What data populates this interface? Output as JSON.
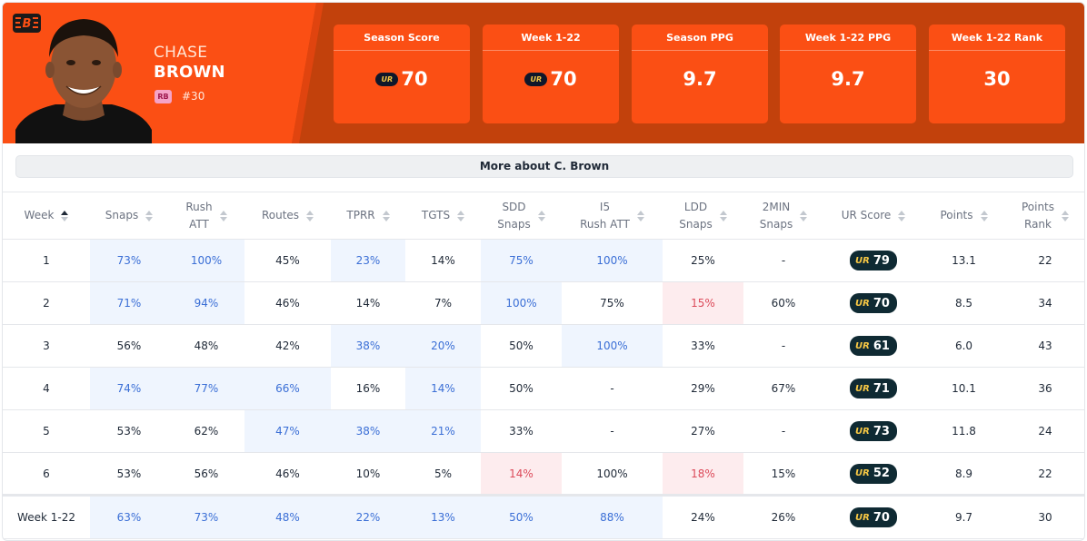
{
  "player": {
    "first_name": "CHASE",
    "last_name": "BROWN",
    "position": "RB",
    "number": "#30",
    "team_logo": "bengals-logo-icon"
  },
  "summary": [
    {
      "label": "Season Score",
      "value": "70",
      "ur": true
    },
    {
      "label": "Week 1-22",
      "value": "70",
      "ur": true
    },
    {
      "label": "Season PPG",
      "value": "9.7",
      "ur": false
    },
    {
      "label": "Week 1-22 PPG",
      "value": "9.7",
      "ur": false
    },
    {
      "label": "Week 1-22 Rank",
      "value": "30",
      "ur": false
    }
  ],
  "ur_mark": "UR",
  "more_button": "More about C. Brown",
  "columns": [
    {
      "l1": "Week",
      "l2": ""
    },
    {
      "l1": "Snaps",
      "l2": ""
    },
    {
      "l1": "Rush",
      "l2": "ATT"
    },
    {
      "l1": "Routes",
      "l2": ""
    },
    {
      "l1": "TPRR",
      "l2": ""
    },
    {
      "l1": "TGTS",
      "l2": ""
    },
    {
      "l1": "SDD",
      "l2": "Snaps"
    },
    {
      "l1": "I5",
      "l2": "Rush ATT"
    },
    {
      "l1": "LDD",
      "l2": "Snaps"
    },
    {
      "l1": "2MIN",
      "l2": "Snaps"
    },
    {
      "l1": "UR Score",
      "l2": ""
    },
    {
      "l1": "Points",
      "l2": ""
    },
    {
      "l1": "Points",
      "l2": "Rank"
    }
  ],
  "rows": [
    {
      "cells": [
        "1",
        "73%",
        "100%",
        "45%",
        "23%",
        "14%",
        "75%",
        "100%",
        "25%",
        "-",
        "79",
        "13.1",
        "22"
      ],
      "hl": [
        "",
        "hi",
        "hi",
        "",
        "hi",
        "",
        "hi",
        "hi",
        "",
        "",
        "",
        "",
        ""
      ]
    },
    {
      "cells": [
        "2",
        "71%",
        "94%",
        "46%",
        "14%",
        "7%",
        "100%",
        "75%",
        "15%",
        "60%",
        "70",
        "8.5",
        "34"
      ],
      "hl": [
        "",
        "hi",
        "hi",
        "",
        "",
        "",
        "hi",
        "",
        "lo",
        "",
        "",
        "",
        ""
      ]
    },
    {
      "cells": [
        "3",
        "56%",
        "48%",
        "42%",
        "38%",
        "20%",
        "50%",
        "100%",
        "33%",
        "-",
        "61",
        "6.0",
        "43"
      ],
      "hl": [
        "",
        "",
        "",
        "",
        "hi",
        "hi",
        "",
        "hi",
        "",
        "",
        "",
        "",
        ""
      ]
    },
    {
      "cells": [
        "4",
        "74%",
        "77%",
        "66%",
        "16%",
        "14%",
        "50%",
        "-",
        "29%",
        "67%",
        "71",
        "10.1",
        "36"
      ],
      "hl": [
        "",
        "hi",
        "hi",
        "hi",
        "",
        "hi",
        "",
        "",
        "",
        "",
        "",
        "",
        ""
      ]
    },
    {
      "cells": [
        "5",
        "53%",
        "62%",
        "47%",
        "38%",
        "21%",
        "33%",
        "-",
        "27%",
        "-",
        "73",
        "11.8",
        "24"
      ],
      "hl": [
        "",
        "",
        "",
        "hi",
        "hi",
        "hi",
        "",
        "",
        "",
        "",
        "",
        "",
        ""
      ]
    },
    {
      "cells": [
        "6",
        "53%",
        "56%",
        "46%",
        "10%",
        "5%",
        "14%",
        "100%",
        "18%",
        "15%",
        "52",
        "8.9",
        "22"
      ],
      "hl": [
        "",
        "",
        "",
        "",
        "",
        "",
        "lo",
        "",
        "lo",
        "",
        "",
        "",
        ""
      ]
    }
  ],
  "total": {
    "cells": [
      "Week 1-22",
      "63%",
      "73%",
      "48%",
      "22%",
      "13%",
      "50%",
      "88%",
      "24%",
      "26%",
      "70",
      "9.7",
      "30"
    ],
    "hl": [
      "",
      "hi",
      "hi",
      "hi",
      "hi",
      "hi",
      "hi",
      "hi",
      "",
      "",
      "",
      "",
      ""
    ]
  },
  "colors": {
    "brand_orange": "#fb4f14",
    "header_dark": "#c2410c",
    "highlight_good": "#eff5fe",
    "highlight_bad": "#fdecee",
    "ur_pill": "#0f2a33"
  }
}
